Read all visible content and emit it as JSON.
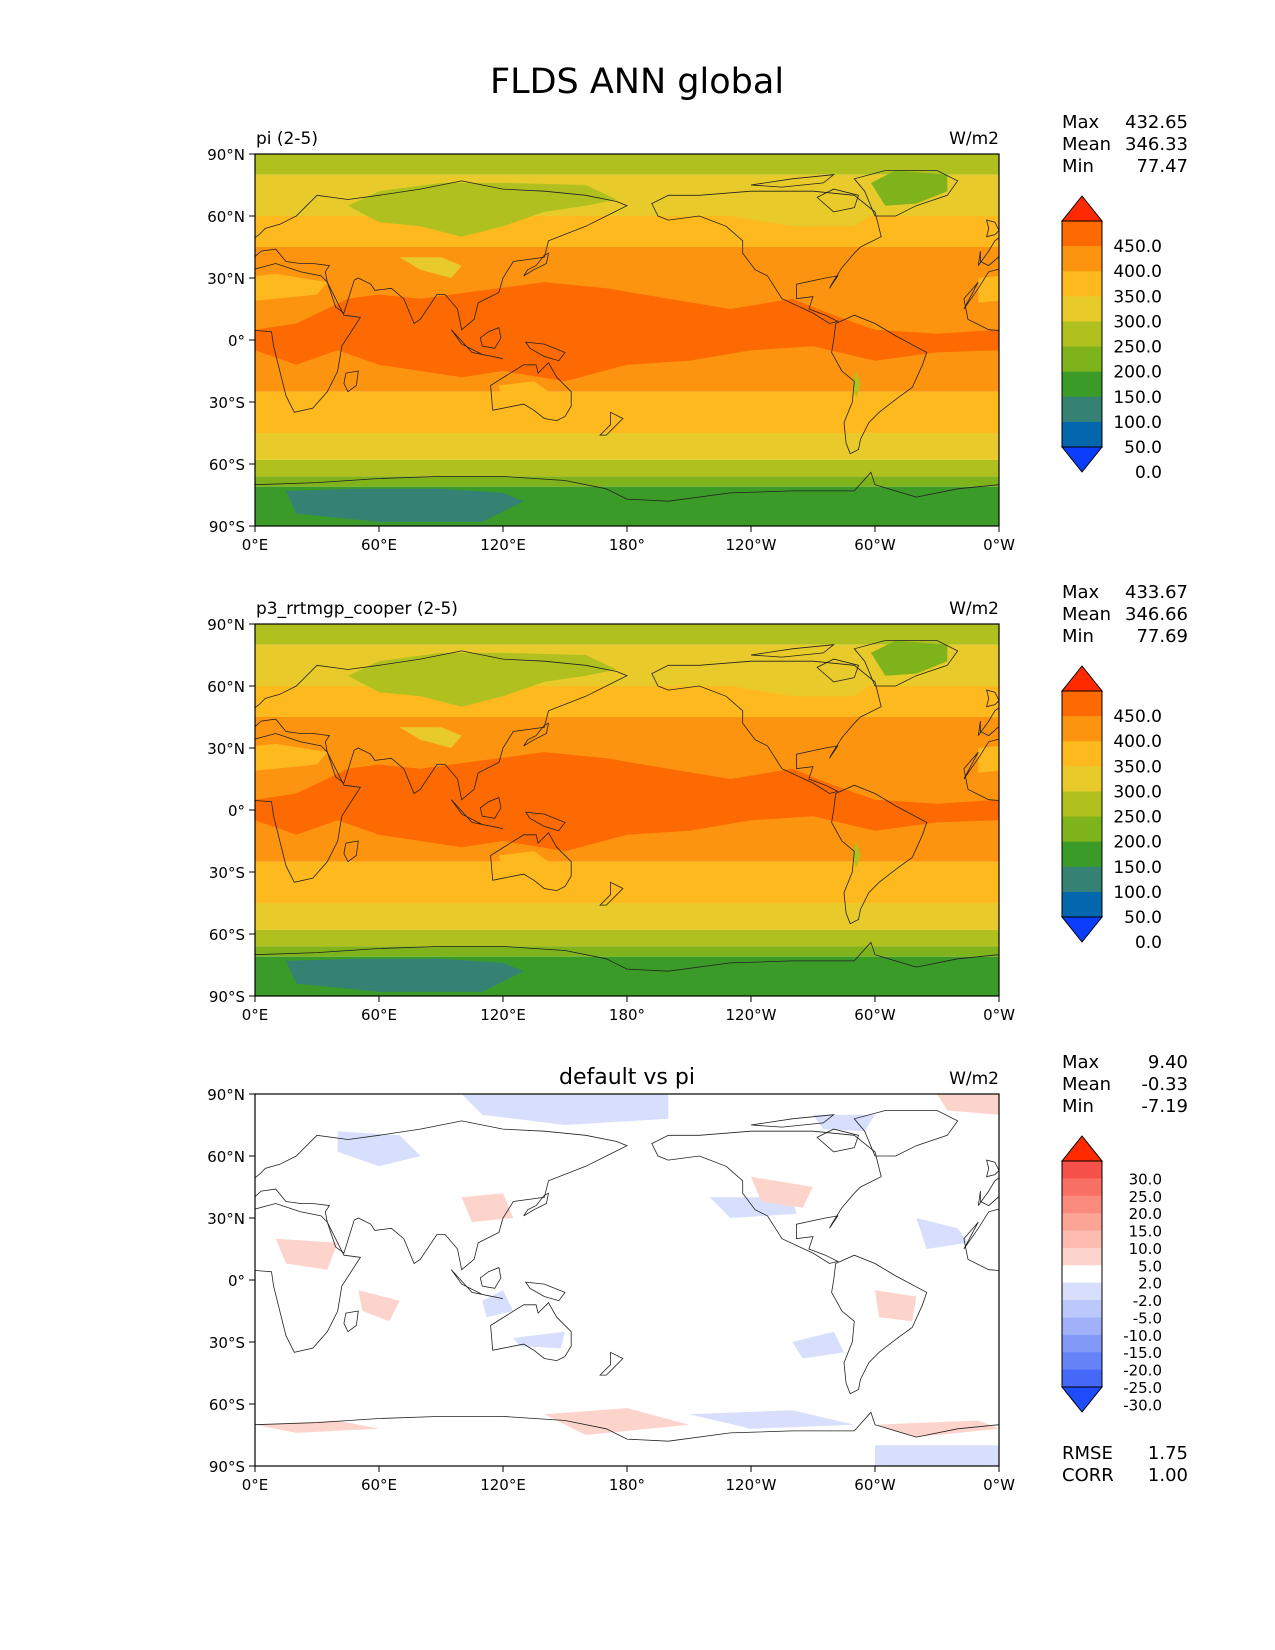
{
  "title": "FLDS ANN global",
  "lat_ticks": [
    "90°N",
    "60°N",
    "30°N",
    "0°",
    "30°S",
    "60°S",
    "90°S"
  ],
  "lon_ticks": [
    "0°E",
    "60°E",
    "120°E",
    "180°",
    "120°W",
    "60°W",
    "0°W"
  ],
  "colors": {
    "ocean_tropics": "#fd6a02",
    "ocean_mid": "#fd9410",
    "subtropics": "#fdb91e",
    "midlat": "#e8cb2a",
    "highlat": "#b0c11f",
    "polar": "#7fb31b",
    "antarctic_coast": "#3b9b29",
    "antarctic_interior": "#358275",
    "diff_neutral": "#ffffff",
    "diff_pos": "#fdd4cc",
    "diff_neg": "#d7dffc"
  },
  "panels": [
    {
      "id": "panel-test",
      "left_title": "pi (2-5)",
      "center_title": "",
      "units": "W/m2",
      "type": "field",
      "stats": [
        {
          "label": "Max",
          "value": "432.65"
        },
        {
          "label": "Mean",
          "value": "346.33"
        },
        {
          "label": "Min",
          "value": "77.47"
        }
      ],
      "colorbar": {
        "labels": [
          "450.0",
          "400.0",
          "350.0",
          "300.0",
          "250.0",
          "200.0",
          "150.0",
          "100.0",
          "50.0",
          "0.0"
        ],
        "colors": [
          "#ff2a00",
          "#fd6a02",
          "#fd9410",
          "#fdb91e",
          "#e8cb2a",
          "#b0c11f",
          "#7fb31b",
          "#3b9b29",
          "#358275",
          "#0466ac",
          "#0a3dfc"
        ]
      }
    },
    {
      "id": "panel-ref",
      "left_title": "p3_rrtmgp_cooper (2-5)",
      "center_title": "",
      "units": "W/m2",
      "type": "field",
      "stats": [
        {
          "label": "Max",
          "value": "433.67"
        },
        {
          "label": "Mean",
          "value": "346.66"
        },
        {
          "label": "Min",
          "value": "77.69"
        }
      ],
      "colorbar": {
        "labels": [
          "450.0",
          "400.0",
          "350.0",
          "300.0",
          "250.0",
          "200.0",
          "150.0",
          "100.0",
          "50.0",
          "0.0"
        ],
        "colors": [
          "#ff2a00",
          "#fd6a02",
          "#fd9410",
          "#fdb91e",
          "#e8cb2a",
          "#b0c11f",
          "#7fb31b",
          "#3b9b29",
          "#358275",
          "#0466ac",
          "#0a3dfc"
        ]
      }
    },
    {
      "id": "panel-diff",
      "left_title": "",
      "center_title": "default vs pi",
      "units": "W/m2",
      "type": "diff",
      "stats": [
        {
          "label": "Max",
          "value": "9.40"
        },
        {
          "label": "Mean",
          "value": "-0.33"
        },
        {
          "label": "Min",
          "value": "-7.19"
        }
      ],
      "colorbar": {
        "labels": [
          "30.0",
          "25.0",
          "20.0",
          "15.0",
          "10.0",
          "5.0",
          "2.0",
          "-2.0",
          "-5.0",
          "-10.0",
          "-15.0",
          "-20.0",
          "-25.0",
          "-30.0"
        ],
        "colors": [
          "#ff2a00",
          "#f6504a",
          "#f97064",
          "#fb8b7c",
          "#fca496",
          "#fdbcaf",
          "#fdd4cc",
          "#ffffff",
          "#d7dffc",
          "#bcc8fb",
          "#a0b1f9",
          "#8399f8",
          "#6582f7",
          "#4668f8",
          "#1e4cfb"
        ]
      },
      "extra_stats": [
        {
          "label": "RMSE",
          "value": "1.75"
        },
        {
          "label": "CORR",
          "value": "1.00"
        }
      ]
    }
  ]
}
